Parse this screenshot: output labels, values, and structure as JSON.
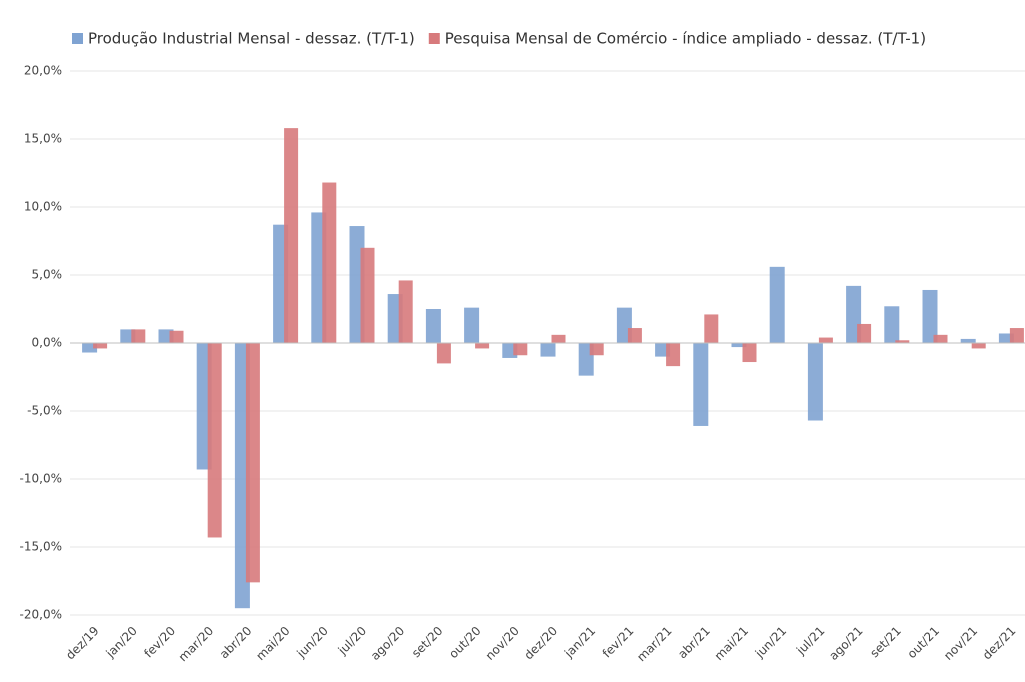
{
  "chart_data": {
    "type": "bar",
    "categories": [
      "dez/19",
      "jan/20",
      "fev/20",
      "mar/20",
      "abr/20",
      "mai/20",
      "jun/20",
      "jul/20",
      "ago/20",
      "set/20",
      "out/20",
      "nov/20",
      "dez/20",
      "jan/21",
      "fev/21",
      "mar/21",
      "abr/21",
      "mai/21",
      "jun/21",
      "jul/21",
      "ago/21",
      "set/21",
      "out/21",
      "nov/21",
      "dez/21"
    ],
    "series": [
      {
        "name": "Produção Industrial Mensal - dessaz. (T/T-1)",
        "color": "#7fa3d2",
        "values": [
          -0.7,
          1.0,
          1.0,
          -9.3,
          -19.5,
          8.7,
          9.6,
          8.6,
          3.6,
          2.5,
          2.6,
          -1.1,
          -1.0,
          -2.4,
          2.6,
          -1.0,
          -6.1,
          -0.3,
          5.6,
          -5.7,
          4.2,
          2.7,
          3.9,
          0.3,
          0.7
        ]
      },
      {
        "name": "Pesquisa Mensal de Comércio - índice ampliado - dessaz. (T/T-1)",
        "color": "#d77a7c",
        "values": [
          -0.4,
          1.0,
          0.9,
          -14.3,
          -17.6,
          15.8,
          11.8,
          7.0,
          4.6,
          -1.5,
          -0.4,
          -0.9,
          0.6,
          -0.9,
          1.1,
          -1.7,
          2.1,
          -1.4,
          0,
          0.4,
          1.4,
          0.2,
          0.6,
          -0.4,
          1.1
        ]
      }
    ],
    "ylim": [
      -20,
      20
    ],
    "yticks": [
      {
        "value": -20,
        "label": "-20,0%"
      },
      {
        "value": -15,
        "label": "-15,0%"
      },
      {
        "value": -10,
        "label": "-10,0%"
      },
      {
        "value": -5,
        "label": "-5,0%"
      },
      {
        "value": 0,
        "label": "0,0%"
      },
      {
        "value": 5,
        "label": "5,0%"
      },
      {
        "value": 10,
        "label": "10,0%"
      },
      {
        "value": 15,
        "label": "15,0%"
      },
      {
        "value": 20,
        "label": "20,0%"
      }
    ],
    "grid": true,
    "legend": "top"
  }
}
